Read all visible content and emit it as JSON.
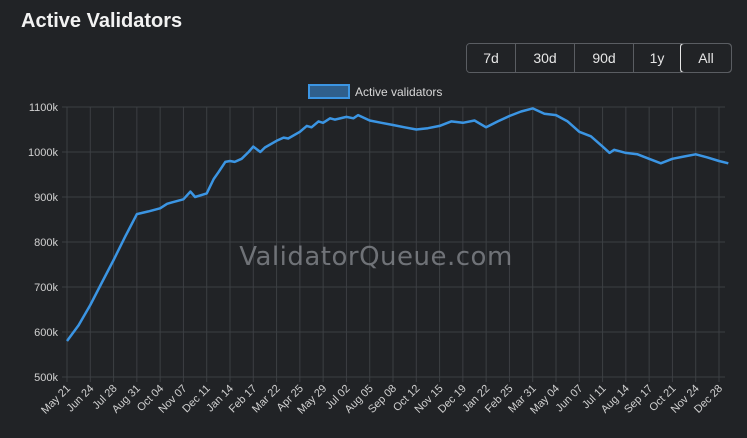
{
  "page": {
    "title": "Active Validators"
  },
  "range_buttons": [
    {
      "label": "7d",
      "active": false
    },
    {
      "label": "30d",
      "active": false
    },
    {
      "label": "90d",
      "active": false
    },
    {
      "label": "1y",
      "active": false
    },
    {
      "label": "All",
      "active": true
    }
  ],
  "watermark": "ValidatorQueue.com",
  "colors": {
    "line": "#3b95e3",
    "legend_fill": "#2f5f8c",
    "grid": "#3c3f43",
    "background": "#212326"
  },
  "chart_data": {
    "type": "line",
    "title": "",
    "xlabel": "",
    "ylabel": "",
    "legend": {
      "position": "top-center",
      "entries": [
        "Active validators"
      ]
    },
    "grid": true,
    "ylim": [
      500000,
      1100000
    ],
    "y_ticks": [
      "500k",
      "600k",
      "700k",
      "800k",
      "900k",
      "1000k",
      "1100k"
    ],
    "x_ticks": [
      "May 21",
      "Jun 24",
      "Jul 28",
      "Aug 31",
      "Oct 04",
      "Nov 07",
      "Dec 11",
      "Jan 14",
      "Feb 17",
      "Mar 22",
      "Apr 25",
      "May 29",
      "Jul 02",
      "Aug 05",
      "Sep 08",
      "Oct 12",
      "Nov 15",
      "Dec 19",
      "Jan 22",
      "Feb 25",
      "Mar 31",
      "May 04",
      "Jun 07",
      "Jul 11",
      "Aug 14",
      "Sep 17",
      "Oct 21",
      "Nov 24",
      "Dec 28"
    ],
    "series": [
      {
        "name": "Active validators",
        "x_index": [
          0,
          0.5,
          1,
          1.5,
          2,
          2.5,
          3,
          3.5,
          4,
          4.3,
          4.5,
          5,
          5.3,
          5.5,
          6,
          6.3,
          6.5,
          6.8,
          7,
          7.2,
          7.5,
          7.8,
          8,
          8.3,
          8.5,
          9,
          9.3,
          9.5,
          10,
          10.3,
          10.5,
          10.8,
          11,
          11.3,
          11.5,
          12,
          12.3,
          12.5,
          13,
          13.5,
          14,
          14.5,
          15,
          15.5,
          16,
          16.5,
          17,
          17.5,
          18,
          18.5,
          19,
          19.5,
          20,
          20.5,
          21,
          21.5,
          22,
          22.5,
          23,
          23.3,
          23.5,
          24,
          24.5,
          25,
          25.5,
          26,
          26.5,
          27,
          27.5,
          28,
          28.4
        ],
        "values": [
          580000,
          615000,
          660000,
          710000,
          760000,
          812000,
          862000,
          868000,
          875000,
          885000,
          888000,
          895000,
          912000,
          900000,
          908000,
          940000,
          955000,
          978000,
          980000,
          978000,
          985000,
          1000000,
          1012000,
          1000000,
          1010000,
          1025000,
          1032000,
          1030000,
          1045000,
          1058000,
          1055000,
          1068000,
          1065000,
          1075000,
          1072000,
          1078000,
          1075000,
          1082000,
          1070000,
          1065000,
          1060000,
          1055000,
          1050000,
          1053000,
          1058000,
          1068000,
          1065000,
          1070000,
          1055000,
          1068000,
          1080000,
          1090000,
          1097000,
          1085000,
          1082000,
          1068000,
          1045000,
          1035000,
          1012000,
          998000,
          1005000,
          998000,
          995000,
          985000,
          975000,
          985000,
          990000,
          995000,
          988000,
          980000,
          975000
        ]
      }
    ]
  }
}
